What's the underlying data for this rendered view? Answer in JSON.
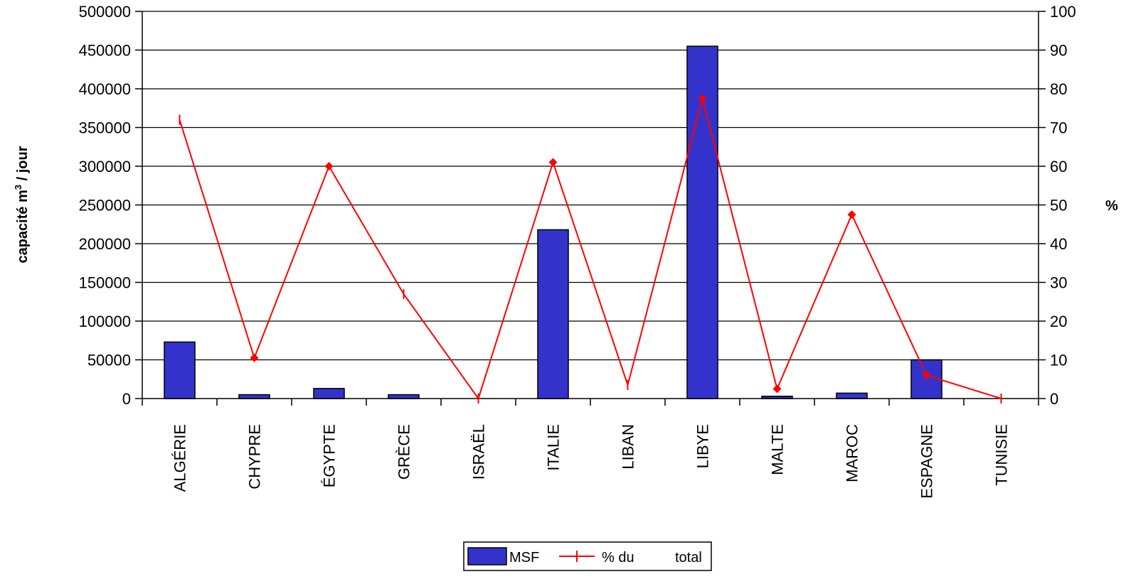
{
  "chart_data": {
    "type": "bar",
    "categories": [
      "ALGÉRIE",
      "CHYPRE",
      "ÉGYPTE",
      "GRÈCE",
      "ISRAËL",
      "ITALIE",
      "LIBAN",
      "LIBYE",
      "MALTE",
      "MAROC",
      "ESPAGNE",
      "TUNISIE"
    ],
    "ylabel": "capacité m³ / jour",
    "ylabel_main": "capacité m",
    "ylabel_sup": "3",
    "ylabel_tail": " / jour",
    "y2label": "%",
    "ylim": [
      0,
      500000
    ],
    "y2lim": [
      0,
      100
    ],
    "yticks": [
      "0",
      "50000",
      "100000",
      "150000",
      "200000",
      "250000",
      "300000",
      "350000",
      "400000",
      "450000",
      "500000"
    ],
    "y2ticks": [
      "0",
      "10",
      "20",
      "30",
      "40",
      "50",
      "60",
      "70",
      "80",
      "90",
      "100"
    ],
    "legend_position": "bottom",
    "series": [
      {
        "name": "MSF",
        "type": "bar",
        "axis": "left",
        "color": "#3333cc",
        "values": [
          73000,
          5000,
          13000,
          5000,
          0,
          218000,
          0,
          455000,
          3000,
          7000,
          50000,
          0
        ]
      },
      {
        "name": "% du total",
        "legend_parts": [
          "% du",
          "total"
        ],
        "type": "line",
        "axis": "right",
        "color": "#ff0000",
        "values": [
          72,
          10.5,
          60,
          27,
          0,
          61,
          3.5,
          77.5,
          2.5,
          47.5,
          6,
          0
        ],
        "markers": [
          "tick",
          "diamond",
          "diamond",
          "tick",
          "tick",
          "diamond",
          "tick",
          "diamond",
          "diamond",
          "diamond",
          "diamond",
          "tick"
        ]
      }
    ]
  }
}
